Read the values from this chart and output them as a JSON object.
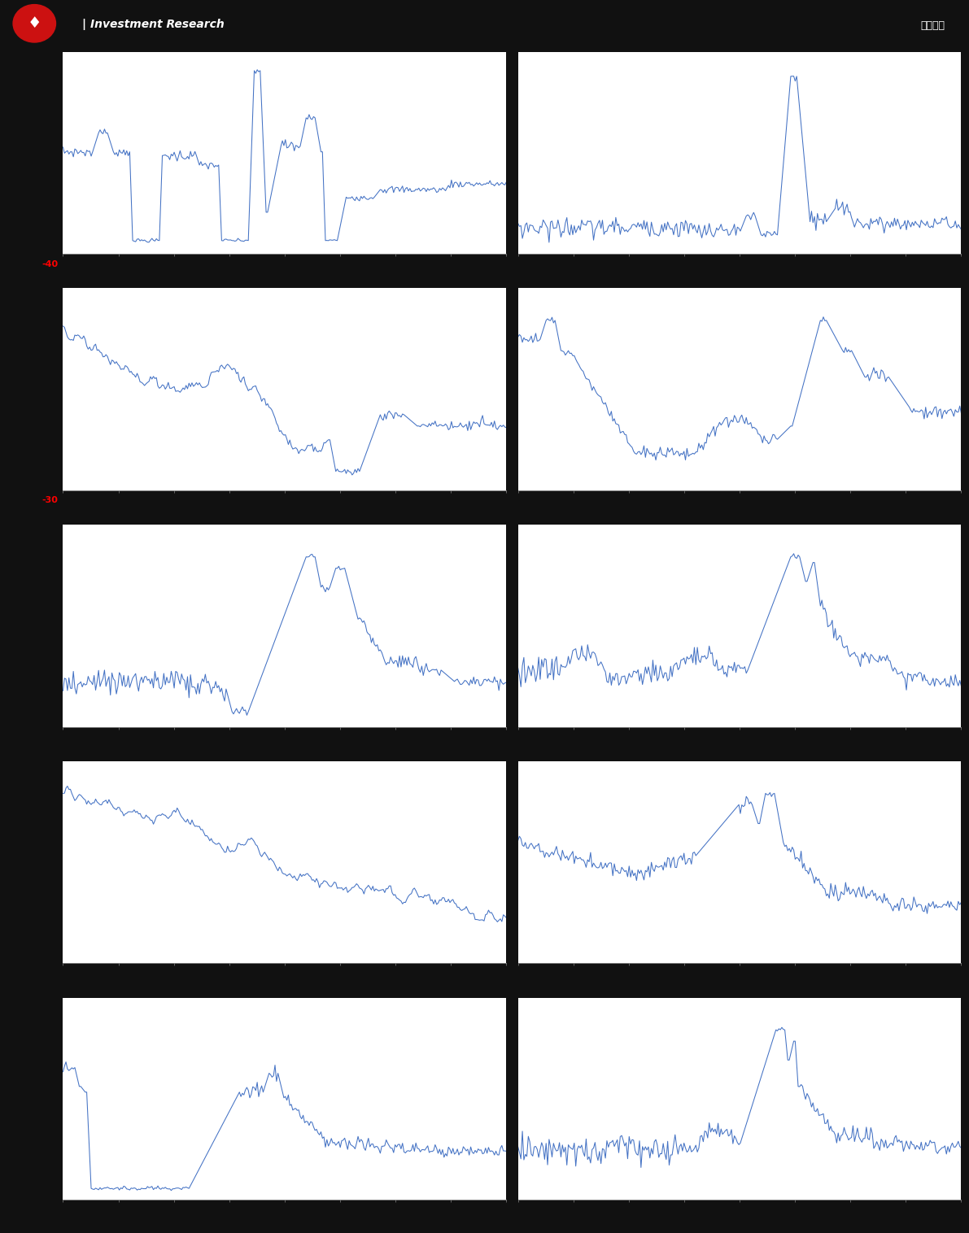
{
  "header_bg": "#111111",
  "header_text": "Investment Research",
  "header_right": "估値周报",
  "footer_bg": "#111111",
  "line_color": "#4472c4",
  "bg_color": "#ffffff",
  "grid_color": "#b0b8c8",
  "separator_color": "#888888",
  "annotation_row0": "-40",
  "annotation_row1": "-30",
  "n_rows": 5,
  "n_cols": 2
}
